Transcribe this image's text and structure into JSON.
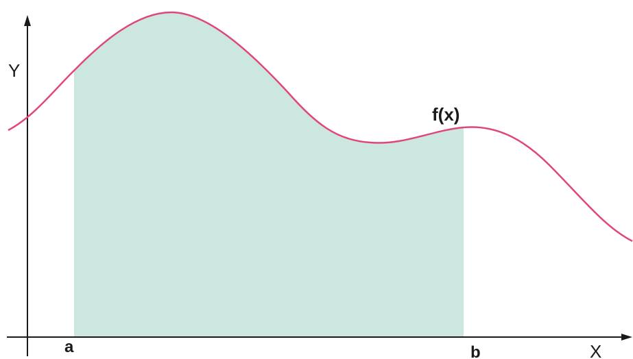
{
  "diagram": {
    "labels": {
      "y_axis": "Y",
      "x_axis": "X",
      "function": "f(x)",
      "lower_bound": "a",
      "upper_bound": "b"
    },
    "colors": {
      "curve": "#e0457b",
      "area_fill": "#cce6e0",
      "axis": "#1a1a1a"
    }
  }
}
